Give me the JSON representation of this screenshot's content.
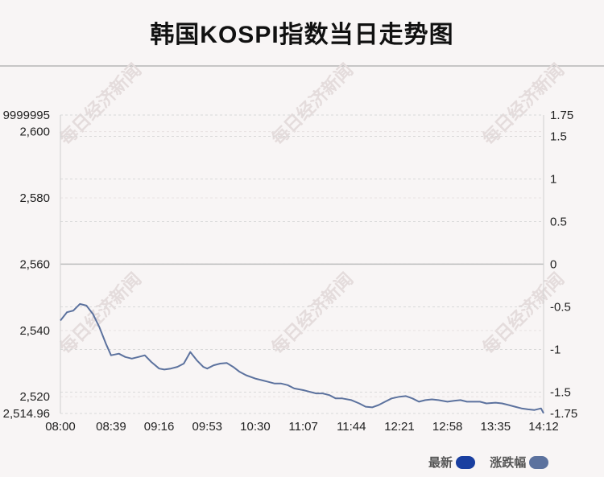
{
  "title": "韩国KOSPI指数当日走势图",
  "watermark": "每日经济新闻",
  "legend": [
    {
      "label": "最新",
      "color": "#1a3fa0"
    },
    {
      "label": "涨跌幅",
      "color": "#5c729e"
    }
  ],
  "colors": {
    "line": "#5c729e",
    "grid": "#d9d9d9",
    "zero_line": "#bdbdbd"
  },
  "chart_data": {
    "type": "line",
    "title": "韩国KOSPI指数当日走势图",
    "x_ticks": [
      "08:00",
      "08:39",
      "09:16",
      "09:53",
      "10:30",
      "11:07",
      "11:44",
      "12:21",
      "12:58",
      "13:35",
      "14:12"
    ],
    "y_left": {
      "ylim": [
        2514.96,
        2605.0
      ],
      "ticks": [
        2600,
        2580,
        2560,
        2540,
        2520
      ],
      "tick_labels": [
        "2,600",
        "2,580",
        "2,560",
        "2,540",
        "2,520"
      ],
      "top_label": "9999995",
      "bottom_label": "2,514.96"
    },
    "y_right": {
      "ylim": [
        -1.75,
        1.75
      ],
      "ticks": [
        1.75,
        1.5,
        1,
        0.5,
        0,
        -0.5,
        -1,
        -1.5,
        -1.75
      ],
      "tick_labels": [
        "1.75",
        "1.5",
        "1",
        "0.5",
        "0",
        "-0.5",
        "-1",
        "-1.5",
        "-1.75"
      ]
    },
    "reference_level": 2560,
    "grid": true,
    "legend_position": "bottom-right",
    "series": [
      {
        "name": "涨跌幅",
        "x": [
          "08:00",
          "08:05",
          "08:10",
          "08:15",
          "08:20",
          "08:25",
          "08:30",
          "08:35",
          "08:39",
          "08:45",
          "08:50",
          "08:55",
          "09:00",
          "09:05",
          "09:10",
          "09:16",
          "09:20",
          "09:25",
          "09:30",
          "09:35",
          "09:40",
          "09:45",
          "09:50",
          "09:53",
          "09:58",
          "10:03",
          "10:08",
          "10:13",
          "10:18",
          "10:23",
          "10:30",
          "10:35",
          "10:40",
          "10:45",
          "10:50",
          "10:55",
          "11:00",
          "11:07",
          "11:12",
          "11:17",
          "11:22",
          "11:27",
          "11:32",
          "11:37",
          "11:44",
          "11:50",
          "11:55",
          "12:00",
          "12:05",
          "12:10",
          "12:15",
          "12:21",
          "12:26",
          "12:31",
          "12:36",
          "12:41",
          "12:46",
          "12:51",
          "12:58",
          "13:03",
          "13:08",
          "13:13",
          "13:18",
          "13:23",
          "13:28",
          "13:35",
          "13:40",
          "13:45",
          "13:50",
          "13:55",
          "14:00",
          "14:05",
          "14:10",
          "14:12"
        ],
        "values": [
          2543.0,
          2545.5,
          2546.0,
          2548.0,
          2547.5,
          2545.0,
          2541.0,
          2536.0,
          2532.5,
          2533.0,
          2532.0,
          2531.5,
          2532.0,
          2532.5,
          2530.5,
          2528.5,
          2528.2,
          2528.5,
          2529.0,
          2530.0,
          2533.5,
          2531.0,
          2529.0,
          2528.5,
          2529.5,
          2530.0,
          2530.2,
          2529.0,
          2527.5,
          2526.5,
          2525.5,
          2525.0,
          2524.5,
          2524.0,
          2524.0,
          2523.5,
          2522.5,
          2522.0,
          2521.5,
          2521.0,
          2521.0,
          2520.5,
          2519.5,
          2519.5,
          2519.0,
          2518.0,
          2517.0,
          2516.8,
          2517.5,
          2518.5,
          2519.5,
          2520.0,
          2520.2,
          2519.5,
          2518.5,
          2519.0,
          2519.2,
          2519.0,
          2518.5,
          2518.8,
          2519.0,
          2518.5,
          2518.5,
          2518.5,
          2518.0,
          2518.2,
          2518.0,
          2517.5,
          2517.0,
          2516.5,
          2516.2,
          2516.0,
          2516.5,
          2515.0
        ]
      }
    ]
  }
}
